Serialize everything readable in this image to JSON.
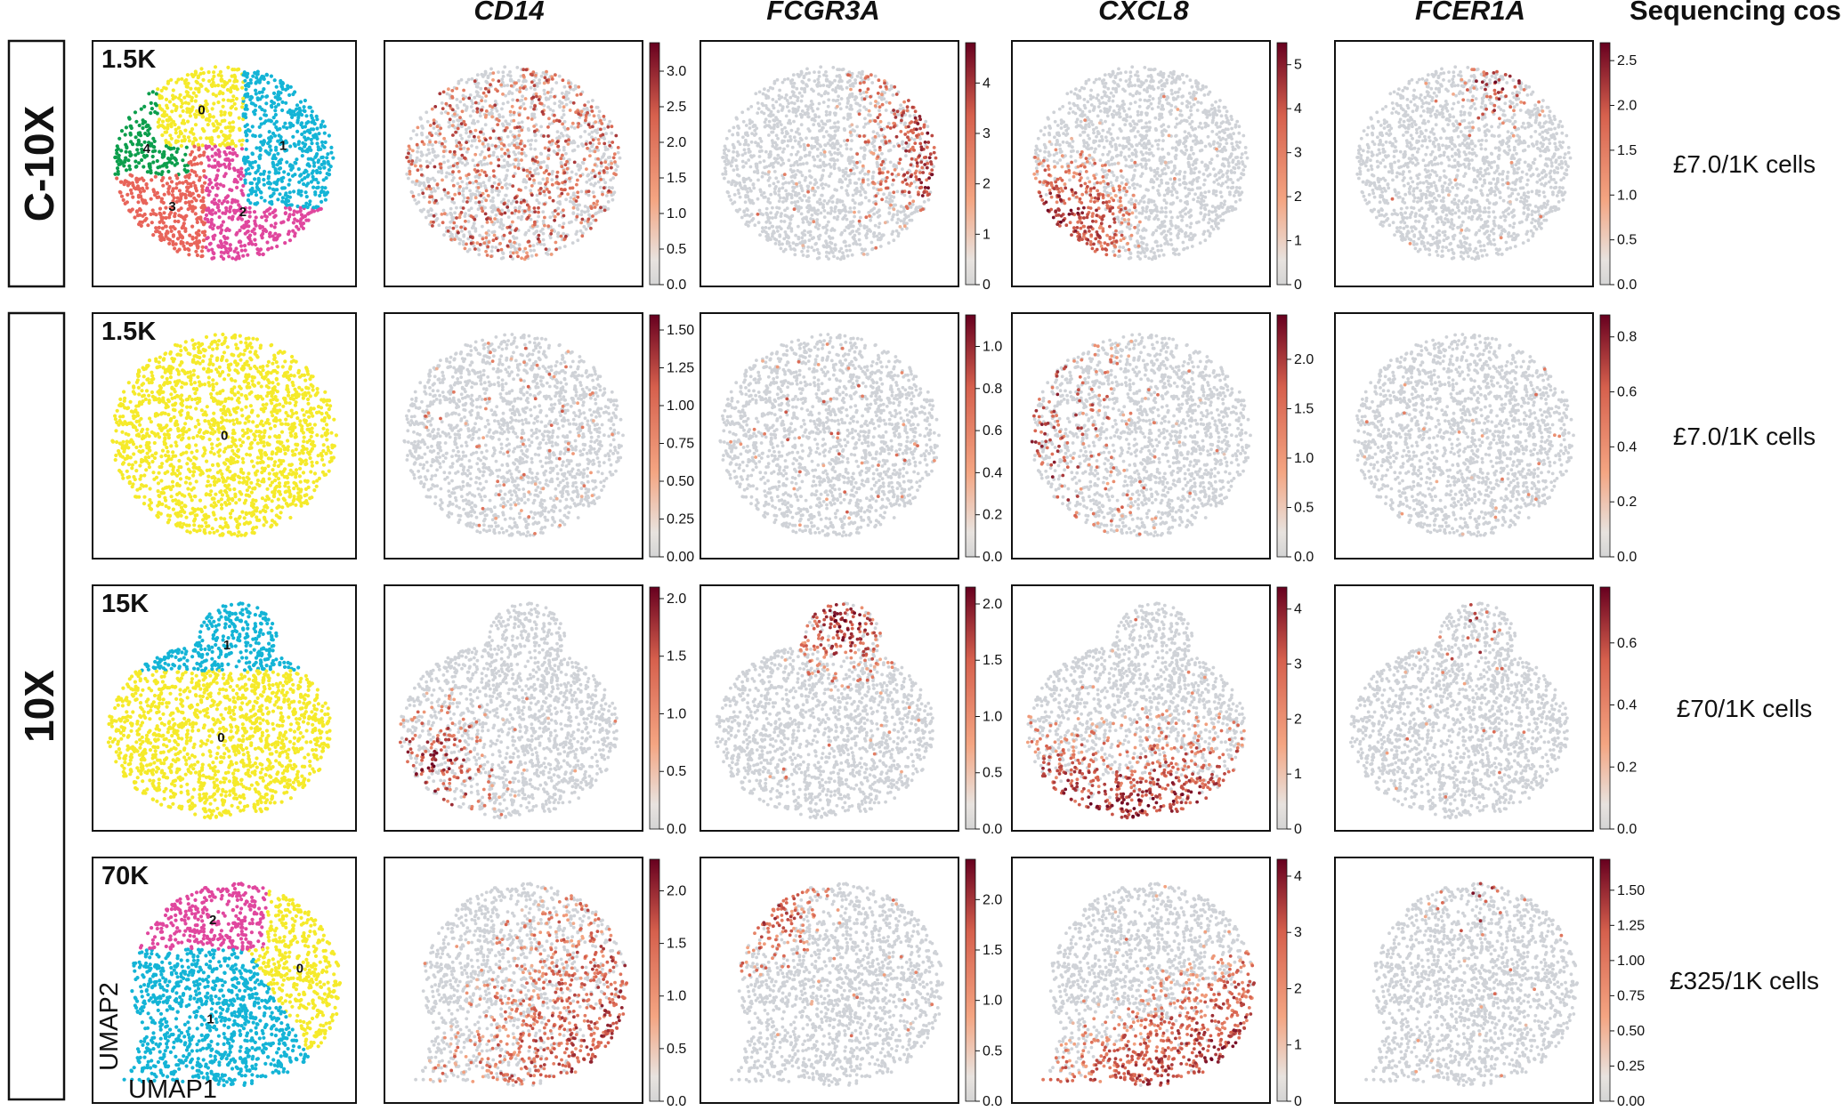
{
  "genes": [
    "CD14",
    "FCGR3A",
    "CXCL8",
    "FCER1A"
  ],
  "cost_header": "Sequencing cos",
  "groups": [
    {
      "label": "C-10X",
      "rows": [
        0
      ]
    },
    {
      "label": "10X",
      "rows": [
        1,
        2,
        3
      ]
    }
  ],
  "axis_labels": {
    "x": "UMAP1",
    "y": "UMAP2"
  },
  "colors": {
    "cluster_0": "#f5ea2a",
    "cluster_1": "#14b4d6",
    "cluster_2": "#e0479e",
    "cluster_3": "#e8645a",
    "cluster_4": "#0c9e4c",
    "point_gray": "#cfd2d7",
    "scale_low": "#d4d4d4",
    "scale_mid": "#f4a582",
    "scale_high": "#67001f"
  },
  "chart_data": {
    "type": "scatter",
    "rows": [
      {
        "depth": "1.5K",
        "cost": "£7.0/1K cells",
        "shape": "blob",
        "clusters": [
          "0",
          "1",
          "2",
          "3",
          "4"
        ],
        "expression_colorbars": [
          {
            "gene": "CD14",
            "max": 3.4,
            "ticks": [
              "0.0",
              "0.5",
              "1.0",
              "1.5",
              "2.0",
              "2.5",
              "3.0"
            ],
            "pattern": "scatter",
            "intensity": 0.35
          },
          {
            "gene": "FCGR3A",
            "max": 4.8,
            "ticks": [
              "0",
              "1",
              "2",
              "3",
              "4"
            ],
            "pattern": "right",
            "intensity": 0.45
          },
          {
            "gene": "CXCL8",
            "max": 5.5,
            "ticks": [
              "0",
              "1",
              "2",
              "3",
              "4",
              "5"
            ],
            "pattern": "bottom-left",
            "intensity": 0.85
          },
          {
            "gene": "FCER1A",
            "max": 2.7,
            "ticks": [
              "0.0",
              "0.5",
              "1.0",
              "1.5",
              "2.0",
              "2.5"
            ],
            "pattern": "top-right",
            "intensity": 0.2
          }
        ]
      },
      {
        "depth": "1.5K",
        "cost": "£7.0/1K cells",
        "shape": "round",
        "clusters": [
          "0"
        ],
        "expression_colorbars": [
          {
            "gene": "CD14",
            "max": 1.6,
            "ticks": [
              "0.00",
              "0.25",
              "0.50",
              "0.75",
              "1.00",
              "1.25",
              "1.50"
            ],
            "pattern": "sparse",
            "intensity": 0.08
          },
          {
            "gene": "FCGR3A",
            "max": 1.15,
            "ticks": [
              "0.0",
              "0.2",
              "0.4",
              "0.6",
              "0.8",
              "1.0"
            ],
            "pattern": "sparse",
            "intensity": 0.05
          },
          {
            "gene": "CXCL8",
            "max": 2.45,
            "ticks": [
              "0.0",
              "0.5",
              "1.0",
              "1.5",
              "2.0"
            ],
            "pattern": "left",
            "intensity": 0.15
          },
          {
            "gene": "FCER1A",
            "max": 0.88,
            "ticks": [
              "0.0",
              "0.2",
              "0.4",
              "0.6",
              "0.8"
            ],
            "pattern": "none",
            "intensity": 0.01
          }
        ]
      },
      {
        "depth": "15K",
        "cost": "£70/1K cells",
        "shape": "mushroom",
        "clusters": [
          "0",
          "1"
        ],
        "expression_colorbars": [
          {
            "gene": "CD14",
            "max": 2.1,
            "ticks": [
              "0.0",
              "0.5",
              "1.0",
              "1.5",
              "2.0"
            ],
            "pattern": "bottom-left",
            "intensity": 0.3
          },
          {
            "gene": "FCGR3A",
            "max": 2.15,
            "ticks": [
              "0.0",
              "0.5",
              "1.0",
              "1.5",
              "2.0"
            ],
            "pattern": "top",
            "intensity": 0.55
          },
          {
            "gene": "CXCL8",
            "max": 4.4,
            "ticks": [
              "0",
              "1",
              "2",
              "3",
              "4"
            ],
            "pattern": "bottom",
            "intensity": 0.5
          },
          {
            "gene": "FCER1A",
            "max": 0.78,
            "ticks": [
              "0.0",
              "0.2",
              "0.4",
              "0.6"
            ],
            "pattern": "top",
            "intensity": 0.04
          }
        ]
      },
      {
        "depth": "70K",
        "cost": "£325/1K cells",
        "shape": "fan",
        "clusters": [
          "0",
          "1",
          "2"
        ],
        "expression_colorbars": [
          {
            "gene": "CD14",
            "max": 2.3,
            "ticks": [
              "0.0",
              "0.5",
              "1.0",
              "1.5",
              "2.0"
            ],
            "pattern": "right-bottom",
            "intensity": 0.6
          },
          {
            "gene": "FCGR3A",
            "max": 2.4,
            "ticks": [
              "0.0",
              "0.5",
              "1.0",
              "1.5",
              "2.0"
            ],
            "pattern": "top-left",
            "intensity": 0.75
          },
          {
            "gene": "CXCL8",
            "max": 4.3,
            "ticks": [
              "0",
              "1",
              "2",
              "3",
              "4"
            ],
            "pattern": "bottom-right",
            "intensity": 0.9
          },
          {
            "gene": "FCER1A",
            "max": 1.72,
            "ticks": [
              "0.00",
              "0.25",
              "0.50",
              "0.75",
              "1.00",
              "1.25",
              "1.50"
            ],
            "pattern": "top",
            "intensity": 0.05
          }
        ]
      }
    ]
  }
}
